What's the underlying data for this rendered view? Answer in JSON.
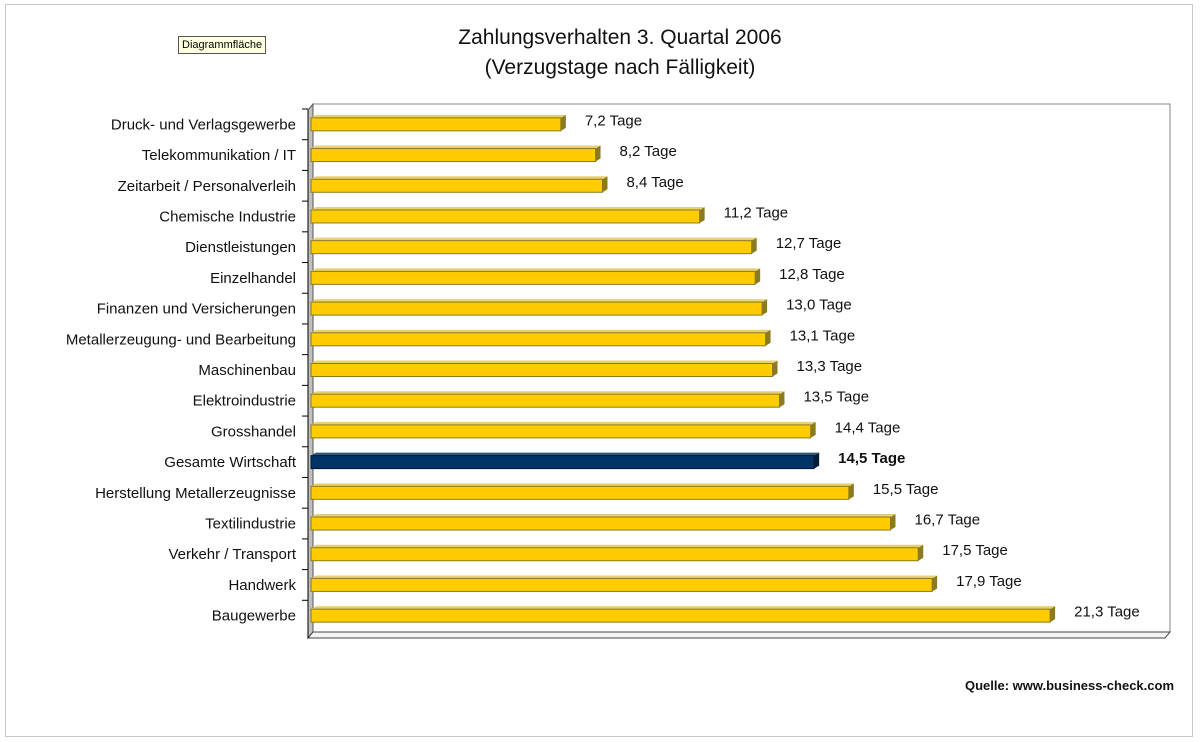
{
  "tooltip": "Diagrammfläche",
  "chart_data": {
    "type": "bar",
    "orientation": "horizontal",
    "title": "Zahlungsverhalten 3. Quartal 2006",
    "subtitle": "(Verzugstage nach Fälligkeit)",
    "xlabel": "",
    "ylabel": "",
    "unit_suffix": " Tage",
    "categories": [
      "Druck- und Verlagsgewerbe",
      "Telekommunikation / IT",
      "Zeitarbeit / Personalverleih",
      "Chemische Industrie",
      "Dienstleistungen",
      "Einzelhandel",
      "Finanzen und Versicherungen",
      "Metallerzeugung- und Bearbeitung",
      "Maschinenbau",
      "Elektroindustrie",
      "Grosshandel",
      "Gesamte Wirtschaft",
      "Herstellung Metallerzeugnisse",
      "Textilindustrie",
      "Verkehr / Transport",
      "Handwerk",
      "Baugewerbe"
    ],
    "values": [
      7.2,
      8.2,
      8.4,
      11.2,
      12.7,
      12.8,
      13.0,
      13.1,
      13.3,
      13.5,
      14.4,
      14.5,
      15.5,
      16.7,
      17.5,
      17.9,
      21.3
    ],
    "data_labels": [
      "7,2 Tage",
      "8,2 Tage",
      "8,4 Tage",
      "11,2 Tage",
      "12,7 Tage",
      "12,8 Tage",
      "13,0 Tage",
      "13,1 Tage",
      "13,3 Tage",
      "13,5 Tage",
      "14,4 Tage",
      "14,5 Tage",
      "15,5 Tage",
      "16,7 Tage",
      "17,5 Tage",
      "17,9 Tage",
      "21,3 Tage"
    ],
    "highlight_index": 11,
    "colors": {
      "bar": "#ffcc00",
      "bar_edge": "#8a7a20",
      "highlight": "#003366"
    },
    "xlim": [
      0,
      24
    ],
    "grid": false,
    "source": "Quelle: www.business-check.com"
  }
}
